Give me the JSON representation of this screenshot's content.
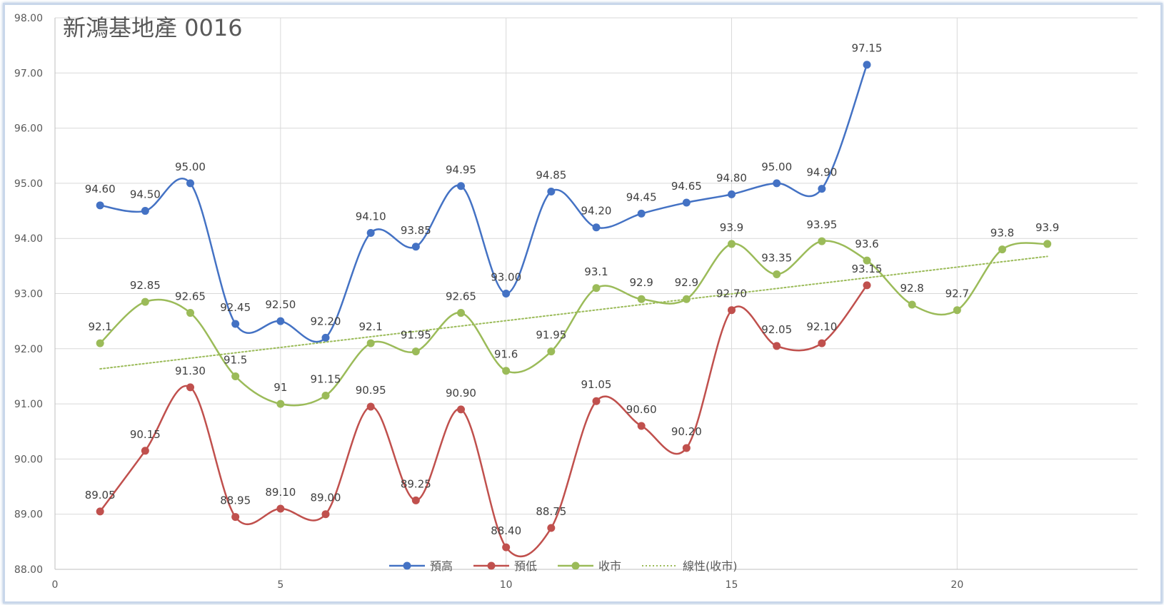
{
  "chart_data": {
    "type": "line",
    "title": "新鴻基地產 0016",
    "xlim": [
      0,
      24
    ],
    "ylim": [
      88,
      98
    ],
    "x_ticks": [
      0,
      5,
      10,
      15,
      20
    ],
    "x_tick_labels": [
      "0",
      "5",
      "10",
      "15",
      "20"
    ],
    "y_ticks": [
      88,
      89,
      90,
      91,
      92,
      93,
      94,
      95,
      96,
      97,
      98
    ],
    "y_tick_labels": [
      "88.00",
      "89.00",
      "90.00",
      "91.00",
      "92.00",
      "93.00",
      "94.00",
      "95.00",
      "96.00",
      "97.00",
      "98.00"
    ],
    "grid": true,
    "legend_position": "bottom",
    "series": [
      {
        "name": "預高",
        "color": "#4472c4",
        "x": [
          1,
          2,
          3,
          4,
          5,
          6,
          7,
          8,
          9,
          10,
          11,
          12,
          13,
          14,
          15,
          16,
          17,
          18
        ],
        "y": [
          94.6,
          94.5,
          95.0,
          92.45,
          92.5,
          92.2,
          94.1,
          93.85,
          94.95,
          93.0,
          94.85,
          94.2,
          94.45,
          94.65,
          94.8,
          95.0,
          94.9,
          97.15
        ],
        "labels": [
          "94.60",
          "94.50",
          "95.00",
          "92.45",
          "92.50",
          "92.20",
          "94.10",
          "93.85",
          "94.95",
          "93.00",
          "94.85",
          "94.20",
          "94.45",
          "94.65",
          "94.80",
          "95.00",
          "94.90",
          "97.15"
        ]
      },
      {
        "name": "預低",
        "color": "#c0504d",
        "x": [
          1,
          2,
          3,
          4,
          5,
          6,
          7,
          8,
          9,
          10,
          11,
          12,
          13,
          14,
          15,
          16,
          17,
          18
        ],
        "y": [
          89.05,
          90.15,
          91.3,
          88.95,
          89.1,
          89.0,
          90.95,
          89.25,
          90.9,
          88.4,
          88.75,
          91.05,
          90.6,
          90.2,
          92.7,
          92.05,
          92.1,
          93.15
        ],
        "labels": [
          "89.05",
          "90.15",
          "91.30",
          "88.95",
          "89.10",
          "89.00",
          "90.95",
          "89.25",
          "90.90",
          "88.40",
          "88.75",
          "91.05",
          "90.60",
          "90.20",
          "92.70",
          "92.05",
          "92.10",
          "93.15"
        ]
      },
      {
        "name": "收市",
        "color": "#9bbb59",
        "x": [
          1,
          2,
          3,
          4,
          5,
          6,
          7,
          8,
          9,
          10,
          11,
          12,
          13,
          14,
          15,
          16,
          17,
          18,
          19,
          20,
          21,
          22
        ],
        "y": [
          92.1,
          92.85,
          92.65,
          91.5,
          91.0,
          91.15,
          92.1,
          91.95,
          92.65,
          91.6,
          91.95,
          93.1,
          92.9,
          92.9,
          93.9,
          93.35,
          93.95,
          93.6,
          92.8,
          92.7,
          93.8,
          93.9
        ],
        "labels": [
          "92.1",
          "92.85",
          "92.65",
          "91.5",
          "91",
          "91.15",
          "92.1",
          "91.95",
          "92.65",
          "91.6",
          "91.95",
          "93.1",
          "92.9",
          "92.9",
          "93.9",
          "93.35",
          "93.95",
          "93.6",
          "92.8",
          "92.7",
          "93.8",
          "93.9"
        ]
      }
    ],
    "trendline": {
      "name": "線性(收市)",
      "color": "#9bbb59",
      "style": "dotted",
      "of_series": "收市",
      "x_start": 1,
      "x_end": 22
    }
  }
}
